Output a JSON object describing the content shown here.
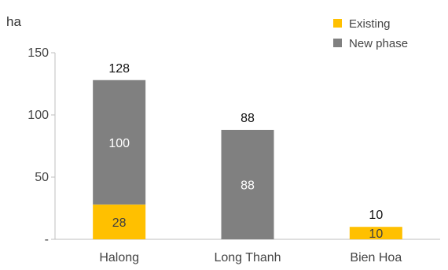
{
  "chart_data": {
    "type": "bar",
    "stacked": true,
    "unit_label": "ha",
    "categories": [
      "Halong",
      "Long Thanh",
      "Bien Hoa"
    ],
    "series": [
      {
        "name": "Existing",
        "values": [
          28,
          0,
          10
        ],
        "color": "#FFC000",
        "label_color": "#404040"
      },
      {
        "name": "New phase",
        "values": [
          100,
          88,
          0
        ],
        "color": "#808080",
        "label_color": "#ffffff"
      }
    ],
    "segment_labels": [
      [
        "28",
        "",
        "10"
      ],
      [
        "100",
        "88",
        ""
      ]
    ],
    "totals": [
      "128",
      "88",
      "10"
    ],
    "ylim": [
      0,
      150
    ],
    "yticks": [
      0,
      50,
      100,
      150
    ],
    "ytick_labels": [
      "-",
      "50",
      "100",
      "150"
    ],
    "grid": false,
    "legend_position": "top-right",
    "axis_color": "#bfbfbf"
  }
}
